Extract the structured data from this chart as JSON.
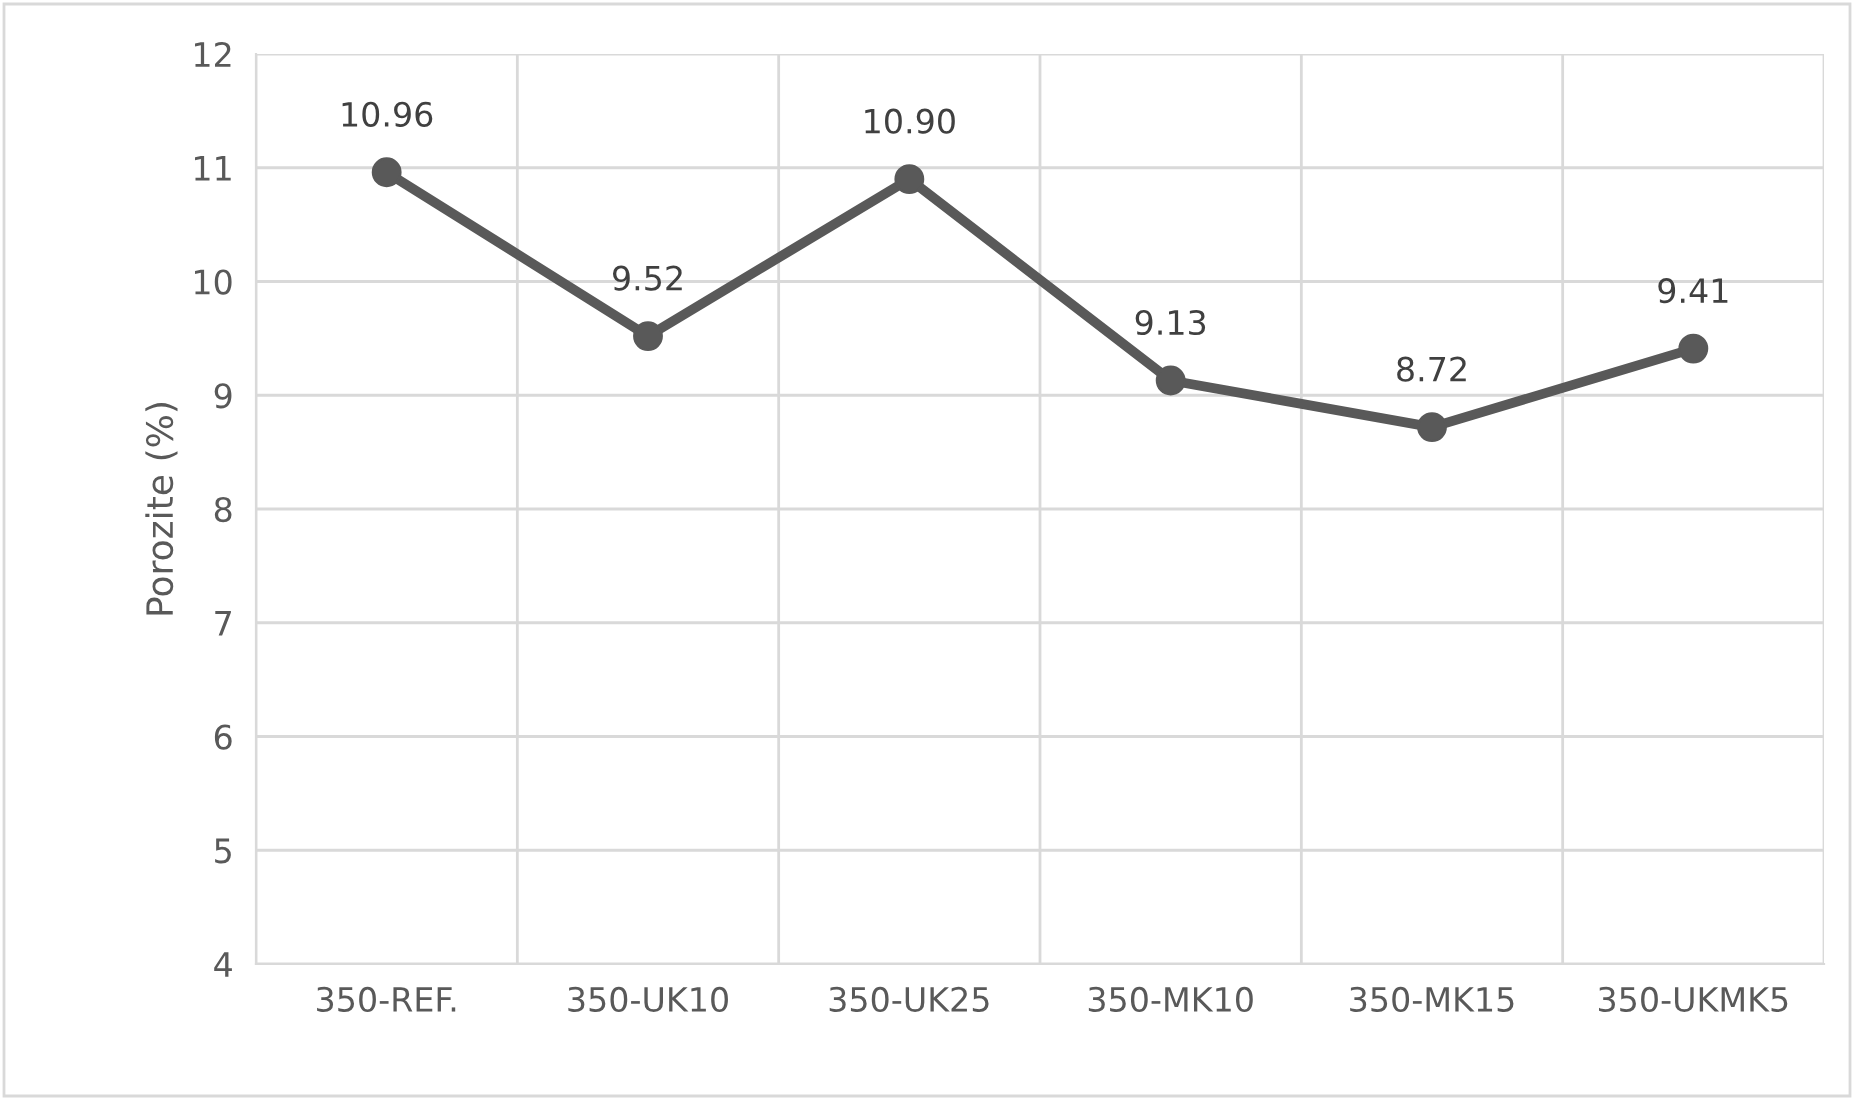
{
  "chart_data": {
    "type": "line",
    "ylabel": "Porozite (%)",
    "categories": [
      "350-REF.",
      "350-UK10",
      "350-UK25",
      "350-MK10",
      "350-MK15",
      "350-UKMK5"
    ],
    "series": [
      {
        "color": "#595959",
        "values": [
          10.96,
          9.52,
          10.9,
          9.13,
          8.72,
          9.41
        ],
        "value_labels": [
          "10.96",
          "9.52",
          "10.90",
          "9.13",
          "8.72",
          "9.41"
        ]
      }
    ],
    "ylim": [
      4,
      12
    ],
    "yticks": [
      4,
      5,
      6,
      7,
      8,
      9,
      10,
      11,
      12
    ],
    "grid": true,
    "marker": "circle",
    "line_style": "solid"
  }
}
